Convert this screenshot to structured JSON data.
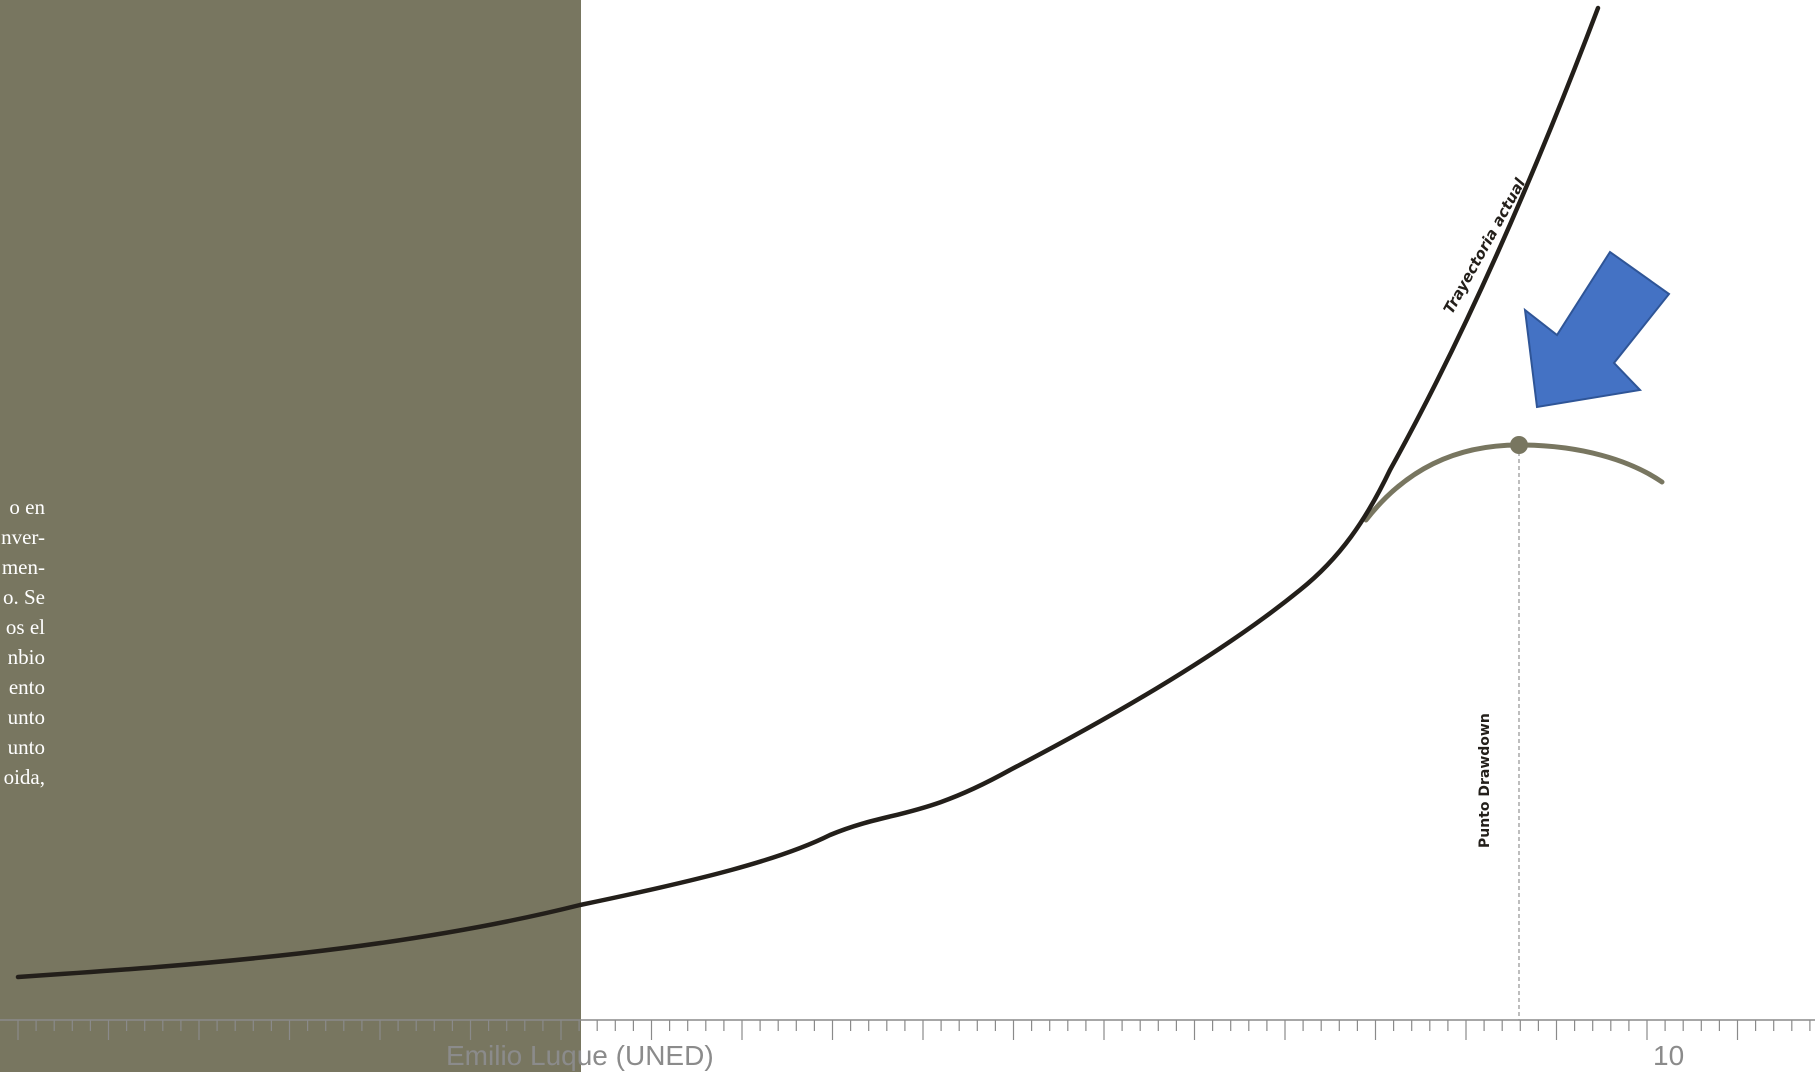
{
  "panel": {
    "color": "#787660",
    "text_lines": [
      "o en",
      "nver-",
      "men-",
      "o. Se",
      "os el",
      "nbio",
      "ento",
      "unto",
      "unto",
      "oida,"
    ]
  },
  "diagram": {
    "curve_color": "#231f1a",
    "branch_color": "#787660",
    "arrow_color": "#4472c4",
    "curve_label": "Trayectoria actual",
    "point_label": "Punto Drawdown"
  },
  "footer": {
    "author": "Emilio Luque (UNED)",
    "slide_number": "10"
  }
}
